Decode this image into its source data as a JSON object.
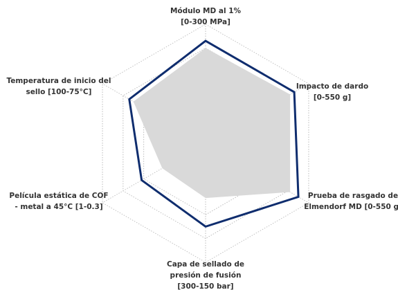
{
  "chart_data": {
    "type": "radar",
    "categories": [
      [
        "Módulo MD al 1%",
        "[0-300 MPa]"
      ],
      [
        "Impacto de dardo",
        "[0-550 g]"
      ],
      [
        "Prueba de rasgado de",
        "Elmendorf MD [0-550 g]"
      ],
      [
        "Capa de sellado de",
        "presión de fusión",
        "[300-150 bar]"
      ],
      [
        "Película estática de COF",
        "- metal a 45°C [1-0.3]"
      ],
      [
        "Temperatura de inicio del",
        "sello [100-75°C]"
      ]
    ],
    "rlim": [
      0,
      5
    ],
    "rticks": [
      1,
      2,
      3,
      4,
      5
    ],
    "grid": true,
    "series": [
      {
        "color": "#d9d9d9",
        "fill": true,
        "values": [
          4.0,
          4.1,
          4.1,
          2.3,
          2.1,
          3.5
        ]
      },
      {
        "color": "#0f2d6e",
        "fill": false,
        "values": [
          4.3,
          4.3,
          4.5,
          3.5,
          3.1,
          3.7
        ]
      }
    ]
  }
}
